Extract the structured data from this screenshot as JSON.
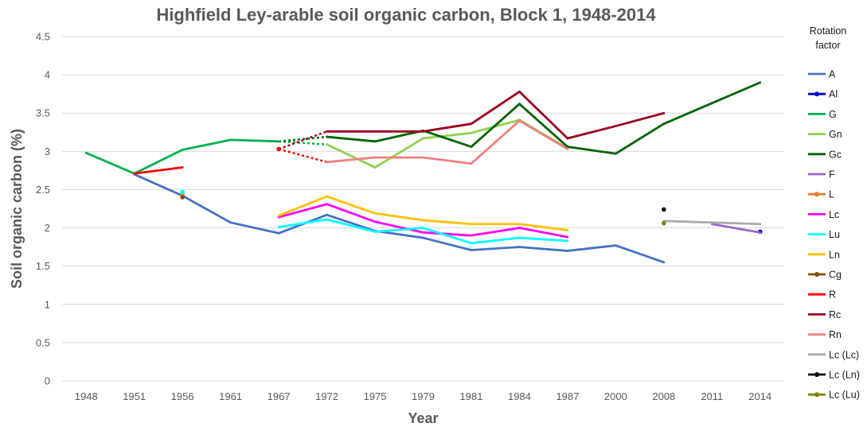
{
  "chart_data": {
    "type": "line",
    "title": "Highfield Ley-arable soil organic carbon, Block 1, 1948-2014",
    "xlabel": "Year",
    "ylabel": "Soil organic carbon (%)",
    "categories": [
      "1948",
      "1951",
      "1956",
      "1961",
      "1967",
      "1972",
      "1975",
      "1979",
      "1981",
      "1984",
      "1987",
      "2000",
      "2008",
      "2011",
      "2014"
    ],
    "ylim": [
      0,
      4.5
    ],
    "yticks": [
      "0",
      "0.5",
      "1",
      "1.5",
      "2",
      "2.5",
      "3",
      "3.5",
      "4",
      "4.5"
    ],
    "grid": true,
    "legend_position": "right",
    "legend_title": "Rotation factor",
    "series": [
      {
        "name": "A",
        "color": "#4472C4",
        "values": [
          null,
          2.7,
          2.42,
          2.07,
          1.93,
          2.17,
          1.96,
          1.87,
          1.71,
          1.75,
          1.7,
          1.77,
          1.55,
          null,
          null
        ]
      },
      {
        "name": "Al",
        "color": "#0000CC",
        "marker": true,
        "values": [
          null,
          null,
          null,
          null,
          null,
          null,
          null,
          null,
          null,
          null,
          null,
          null,
          null,
          null,
          1.95
        ]
      },
      {
        "name": "G",
        "color": "#00B050",
        "values": [
          2.98,
          2.71,
          3.02,
          3.15,
          3.13,
          null,
          null,
          null,
          null,
          null,
          null,
          null,
          null,
          null,
          null
        ],
        "dashed_to": {
          "x": "1972",
          "y": 3.09
        }
      },
      {
        "name": "Gn",
        "color": "#92D050",
        "values": [
          null,
          null,
          null,
          null,
          null,
          3.09,
          2.79,
          3.17,
          3.24,
          3.41,
          3.04,
          null,
          null,
          null,
          null
        ]
      },
      {
        "name": "Gc",
        "color": "#006400",
        "values": [
          null,
          null,
          null,
          null,
          null,
          3.19,
          3.13,
          3.27,
          3.06,
          3.62,
          3.06,
          2.97,
          3.36,
          3.63,
          3.9
        ],
        "dashed_from": {
          "x": "1967",
          "y": 3.13
        }
      },
      {
        "name": "F",
        "color": "#9966CC",
        "values": [
          null,
          null,
          null,
          null,
          null,
          null,
          null,
          null,
          null,
          null,
          null,
          null,
          null,
          2.05,
          1.94
        ]
      },
      {
        "name": "L",
        "color": "#ED7D31",
        "marker": true,
        "values": [
          null,
          null,
          2.44,
          null,
          null,
          null,
          null,
          null,
          null,
          null,
          null,
          null,
          null,
          null,
          null
        ]
      },
      {
        "name": "Lc",
        "color": "#FF00FF",
        "values": [
          null,
          null,
          null,
          null,
          2.14,
          2.31,
          2.08,
          1.94,
          1.9,
          2.0,
          1.88,
          null,
          null,
          null,
          null
        ]
      },
      {
        "name": "Lu",
        "color": "#00FFFF",
        "values": [
          null,
          null,
          2.47,
          null,
          2.01,
          2.11,
          1.95,
          2.0,
          1.8,
          1.87,
          1.83,
          null,
          null,
          null,
          null
        ]
      },
      {
        "name": "Ln",
        "color": "#FFC000",
        "values": [
          null,
          null,
          null,
          null,
          2.16,
          2.41,
          2.19,
          2.1,
          2.05,
          2.05,
          1.97,
          null,
          null,
          null,
          null
        ]
      },
      {
        "name": "Cg",
        "color": "#7F4F00",
        "marker": true,
        "values": [
          null,
          null,
          2.4,
          null,
          null,
          null,
          null,
          null,
          null,
          null,
          null,
          null,
          null,
          null,
          null
        ]
      },
      {
        "name": "R",
        "color": "#FF0000",
        "values": [
          null,
          2.71,
          2.79,
          null,
          3.03,
          null,
          null,
          null,
          null,
          null,
          null,
          null,
          null,
          null,
          null
        ],
        "dashed_to": {
          "x": "1972",
          "y": 2.86
        }
      },
      {
        "name": "Rc",
        "color": "#9B0020",
        "values": [
          null,
          null,
          null,
          null,
          null,
          3.26,
          3.26,
          3.26,
          3.36,
          3.78,
          3.17,
          3.33,
          3.5,
          null,
          null
        ],
        "dashed_from": {
          "x": "1967",
          "y": 3.03
        }
      },
      {
        "name": "Rn",
        "color": "#F08080",
        "values": [
          null,
          null,
          null,
          null,
          null,
          2.86,
          2.92,
          2.92,
          2.84,
          3.4,
          3.03,
          null,
          null,
          null,
          null
        ]
      },
      {
        "name": "Lc (Lc)",
        "color": "#AAAAAA",
        "values": [
          null,
          null,
          null,
          null,
          null,
          null,
          null,
          null,
          null,
          null,
          null,
          null,
          2.09,
          2.07,
          2.05
        ]
      },
      {
        "name": "Lc (Ln)",
        "color": "#000000",
        "marker": true,
        "values": [
          null,
          null,
          null,
          null,
          null,
          null,
          null,
          null,
          null,
          null,
          null,
          null,
          2.24,
          null,
          null
        ]
      },
      {
        "name": "Lc (Lu)",
        "color": "#808000",
        "marker": true,
        "values": [
          null,
          null,
          null,
          null,
          null,
          null,
          null,
          null,
          null,
          null,
          null,
          null,
          2.06,
          null,
          null
        ]
      }
    ]
  }
}
